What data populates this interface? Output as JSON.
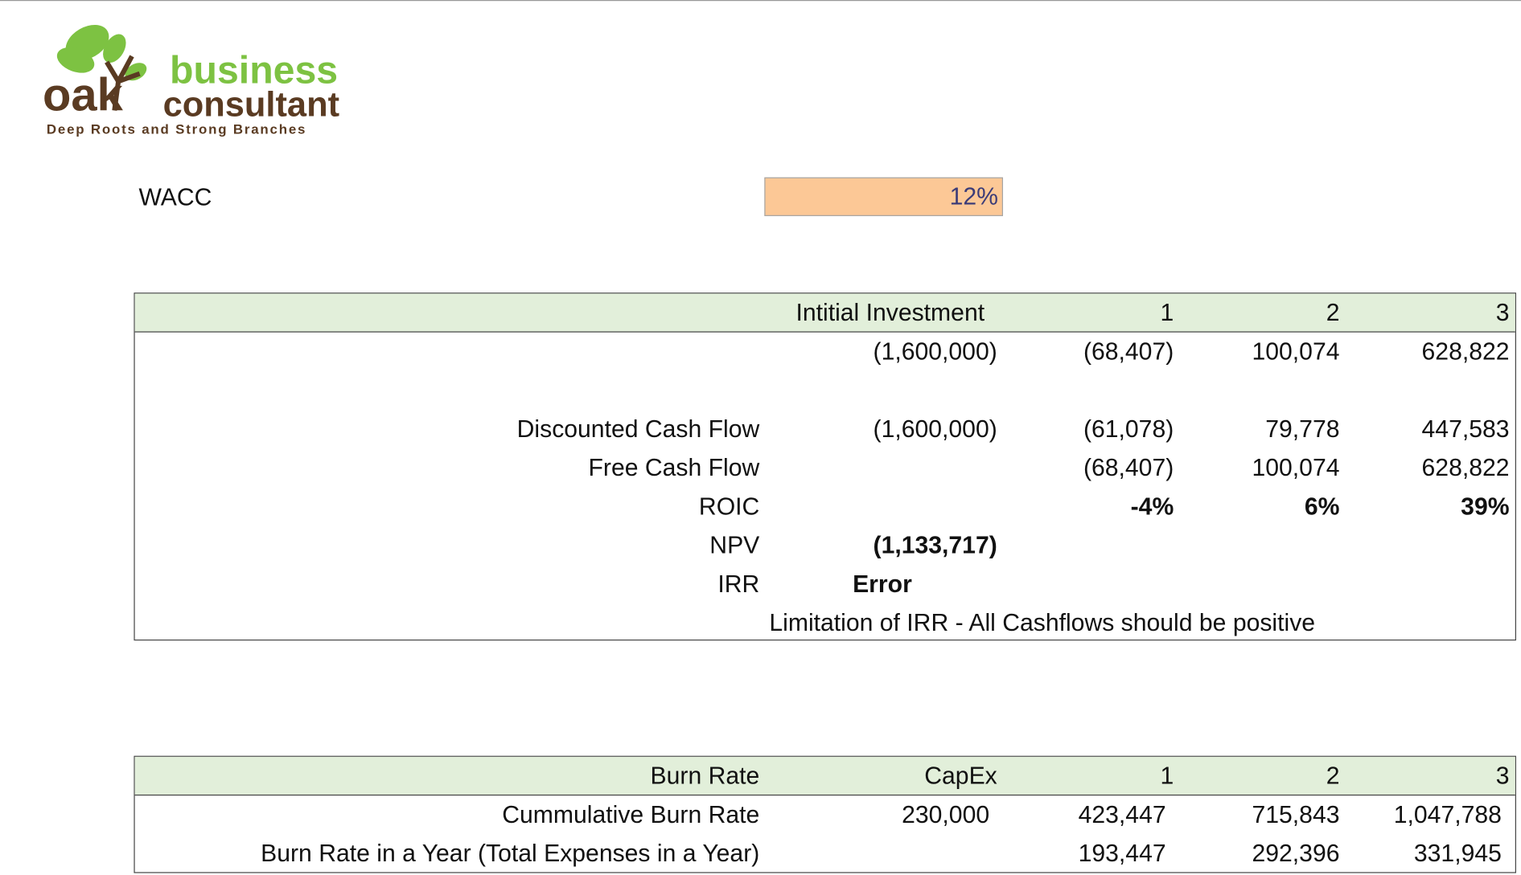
{
  "logo": {
    "brand": "oak",
    "line1": "business",
    "line2": "consultant",
    "tagline": "Deep Roots and Strong Branches"
  },
  "wacc": {
    "label": "WACC",
    "value": "12%"
  },
  "investment_table": {
    "header": [
      null,
      "Intitial Investment",
      "1",
      "2",
      "3"
    ],
    "rows": [
      [
        null,
        "(1,600,000)",
        "(68,407)",
        "100,074",
        "628,822"
      ],
      [
        "Discounted Cash Flow",
        "(1,600,000)",
        "(61,078)",
        "79,778",
        "447,583"
      ],
      [
        "Free Cash Flow",
        null,
        "(68,407)",
        "100,074",
        "628,822"
      ],
      [
        "ROIC",
        null,
        "-4%",
        "6%",
        "39%"
      ],
      [
        "NPV",
        "(1,133,717)",
        null,
        null,
        null
      ],
      [
        "IRR",
        "Error",
        null,
        null,
        null
      ]
    ],
    "note": "Limitation of IRR - All Cashflows should be positive"
  },
  "burn_table": {
    "header": [
      "Burn Rate",
      "CapEx",
      "1",
      "2",
      "3"
    ],
    "rows": [
      [
        "Cummulative Burn Rate",
        "230,000",
        "423,447",
        "715,843",
        "1,047,788"
      ],
      [
        "Burn Rate in a Year (Total Expenses in a Year)",
        null,
        "193,447",
        "292,396",
        "331,945"
      ]
    ]
  }
}
